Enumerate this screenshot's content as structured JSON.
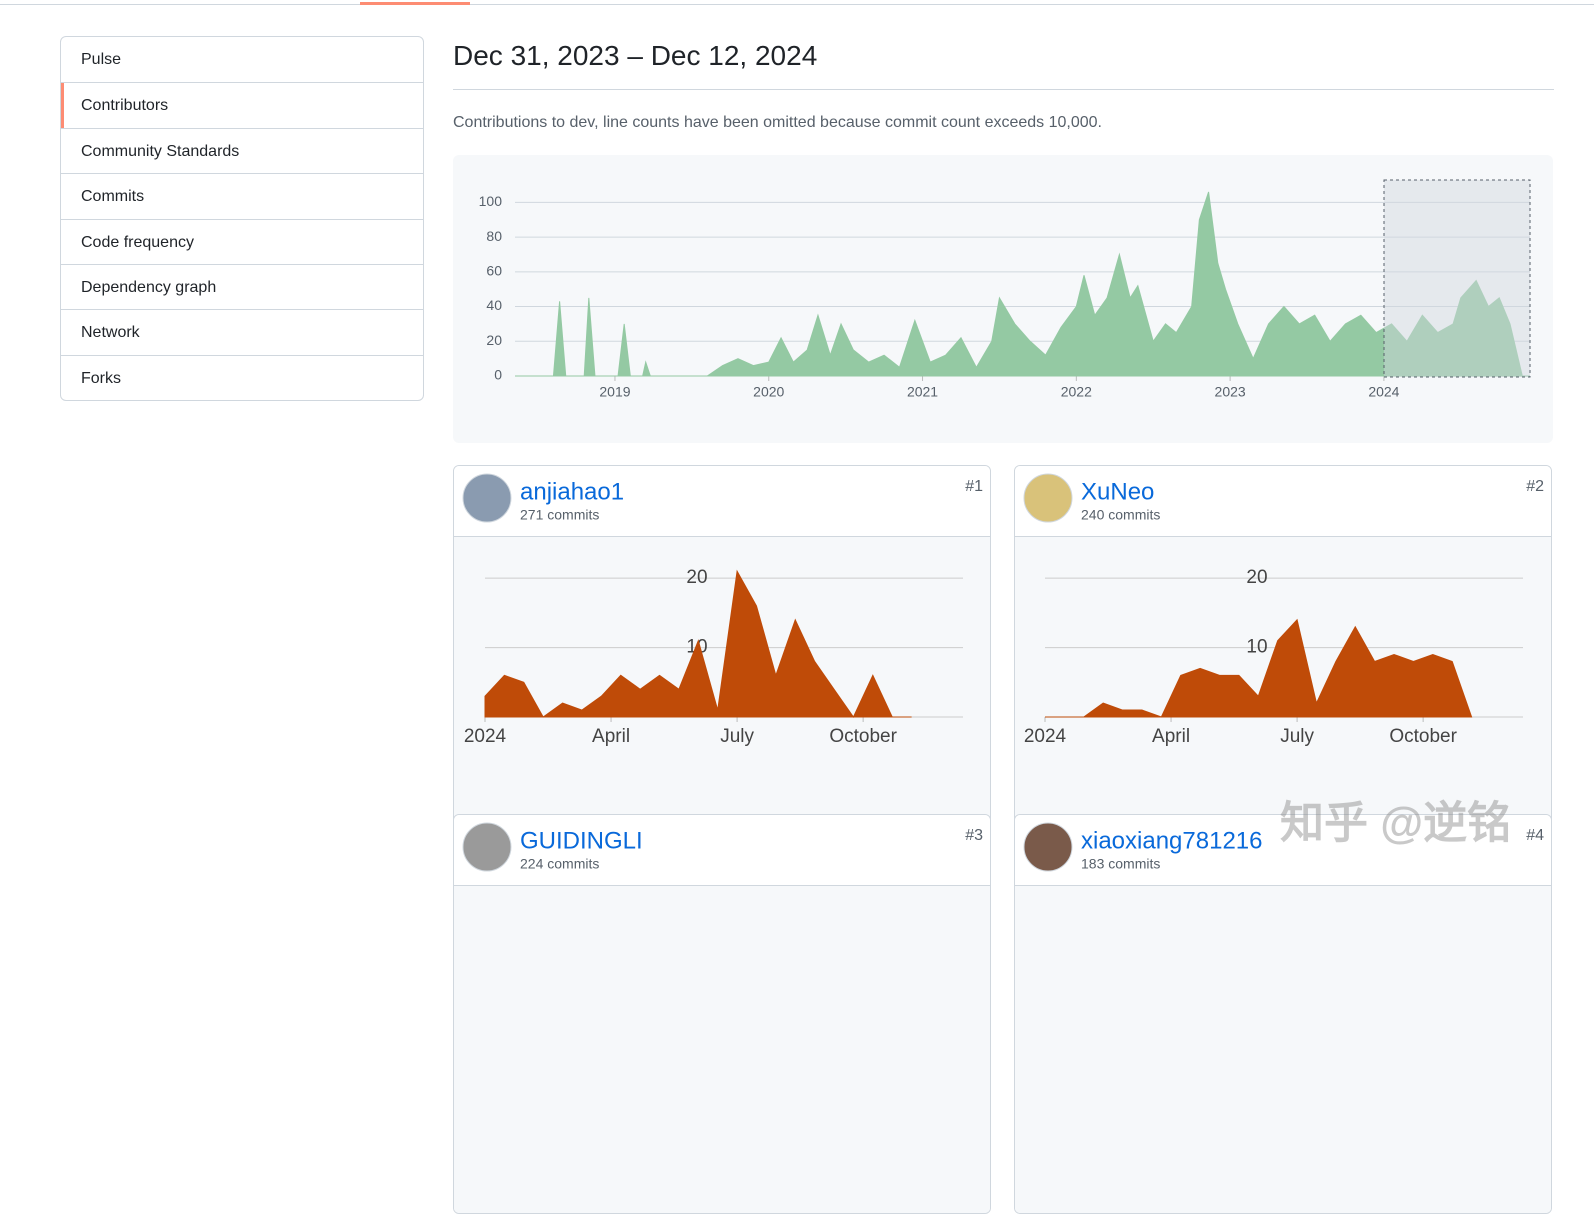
{
  "nav": [
    "Pulse",
    "Contributors",
    "Community Standards",
    "Commits",
    "Code frequency",
    "Dependency graph",
    "Network",
    "Forks"
  ],
  "heading": "Dec 31, 2023 – Dec 12, 2024",
  "description": "Contributions to dev, line counts have been omitted because commit count exceeds 10,000.",
  "chart_data": [
    {
      "type": "area",
      "color": "#94c9a3",
      "x": [
        2018.35,
        2018.6,
        2018.64,
        2018.68,
        2018.8,
        2018.83,
        2018.87,
        2019.02,
        2019.06,
        2019.1,
        2019.18,
        2019.2,
        2019.23,
        2019.6,
        2019.7,
        2019.8,
        2019.9,
        2020.0,
        2020.08,
        2020.16,
        2020.25,
        2020.32,
        2020.4,
        2020.47,
        2020.55,
        2020.65,
        2020.75,
        2020.85,
        2020.95,
        2021.05,
        2021.15,
        2021.25,
        2021.35,
        2021.45,
        2021.5,
        2021.6,
        2021.7,
        2021.8,
        2021.9,
        2022.0,
        2022.05,
        2022.12,
        2022.2,
        2022.28,
        2022.35,
        2022.4,
        2022.5,
        2022.58,
        2022.65,
        2022.75,
        2022.8,
        2022.86,
        2022.92,
        2022.97,
        2023.05,
        2023.15,
        2023.25,
        2023.35,
        2023.45,
        2023.55,
        2023.65,
        2023.75,
        2023.85,
        2023.95,
        2024.05,
        2024.15,
        2024.25,
        2024.35,
        2024.45,
        2024.5,
        2024.6,
        2024.68,
        2024.75,
        2024.82,
        2024.9,
        2024.95
      ],
      "values": [
        0,
        0,
        43,
        0,
        0,
        45,
        0,
        0,
        30,
        0,
        0,
        8,
        0,
        0,
        6,
        10,
        6,
        8,
        22,
        8,
        15,
        35,
        12,
        30,
        15,
        8,
        12,
        5,
        32,
        8,
        12,
        22,
        5,
        20,
        45,
        30,
        20,
        12,
        28,
        40,
        58,
        35,
        45,
        70,
        45,
        52,
        20,
        30,
        25,
        40,
        90,
        106,
        65,
        50,
        30,
        10,
        30,
        40,
        30,
        35,
        20,
        30,
        35,
        25,
        30,
        20,
        35,
        25,
        30,
        45,
        55,
        40,
        45,
        30,
        0,
        0
      ],
      "xlim": [
        2018.35,
        2024.95
      ],
      "xticks": [
        2019,
        2020,
        2021,
        2022,
        2023,
        2024
      ],
      "ylim": [
        0,
        110
      ],
      "yticks": [
        0,
        20,
        40,
        60,
        80,
        100
      ],
      "grid": true
    },
    {
      "type": "area",
      "color": "#bf4b08",
      "x": [
        0,
        2,
        4,
        6,
        8,
        10,
        12,
        14,
        16,
        18,
        20,
        22,
        24,
        26,
        28,
        30,
        32,
        34,
        36,
        38,
        40,
        42,
        44
      ],
      "values": [
        3,
        6,
        5,
        0,
        2,
        1,
        3,
        6,
        4,
        6,
        4,
        11,
        1,
        21,
        16,
        6,
        14,
        8,
        4,
        0,
        6,
        0,
        0
      ],
      "xlim": [
        0,
        49.3
      ],
      "xticks": [
        {
          "value": 0,
          "label": "2024"
        },
        {
          "value": 13,
          "label": "April"
        },
        {
          "value": 26,
          "label": "July"
        },
        {
          "value": 39,
          "label": "October"
        }
      ],
      "ylim": [
        0,
        22.9
      ],
      "yticks": [
        10,
        20
      ],
      "grid": true
    },
    {
      "type": "area",
      "color": "#bf4b08",
      "x": [
        0,
        2,
        4,
        6,
        8,
        10,
        12,
        14,
        16,
        18,
        20,
        22,
        24,
        26,
        28,
        30,
        32,
        34,
        36,
        38,
        40,
        42,
        44
      ],
      "values": [
        0,
        0,
        0,
        2,
        1,
        1,
        0,
        6,
        7,
        6,
        6,
        3,
        11,
        14,
        2,
        8,
        13,
        8,
        9,
        8,
        9,
        8,
        0
      ],
      "xlim": [
        0,
        49.3
      ],
      "xticks": [
        {
          "value": 0,
          "label": "2024"
        },
        {
          "value": 13,
          "label": "April"
        },
        {
          "value": 26,
          "label": "July"
        },
        {
          "value": 39,
          "label": "October"
        }
      ],
      "ylim": [
        0,
        22.9
      ],
      "yticks": [
        10,
        20
      ],
      "grid": true
    }
  ],
  "contributors": [
    {
      "rank": "#1",
      "name": "anjiahao1",
      "commits": "271 commits"
    },
    {
      "rank": "#2",
      "name": "XuNeo",
      "commits": "240 commits"
    },
    {
      "rank": "#3",
      "name": "GUIDINGLI",
      "commits": "224 commits"
    },
    {
      "rank": "#4",
      "name": "xiaoxiang781216",
      "commits": "183 commits"
    }
  ],
  "watermark": "知乎 @逆铭"
}
